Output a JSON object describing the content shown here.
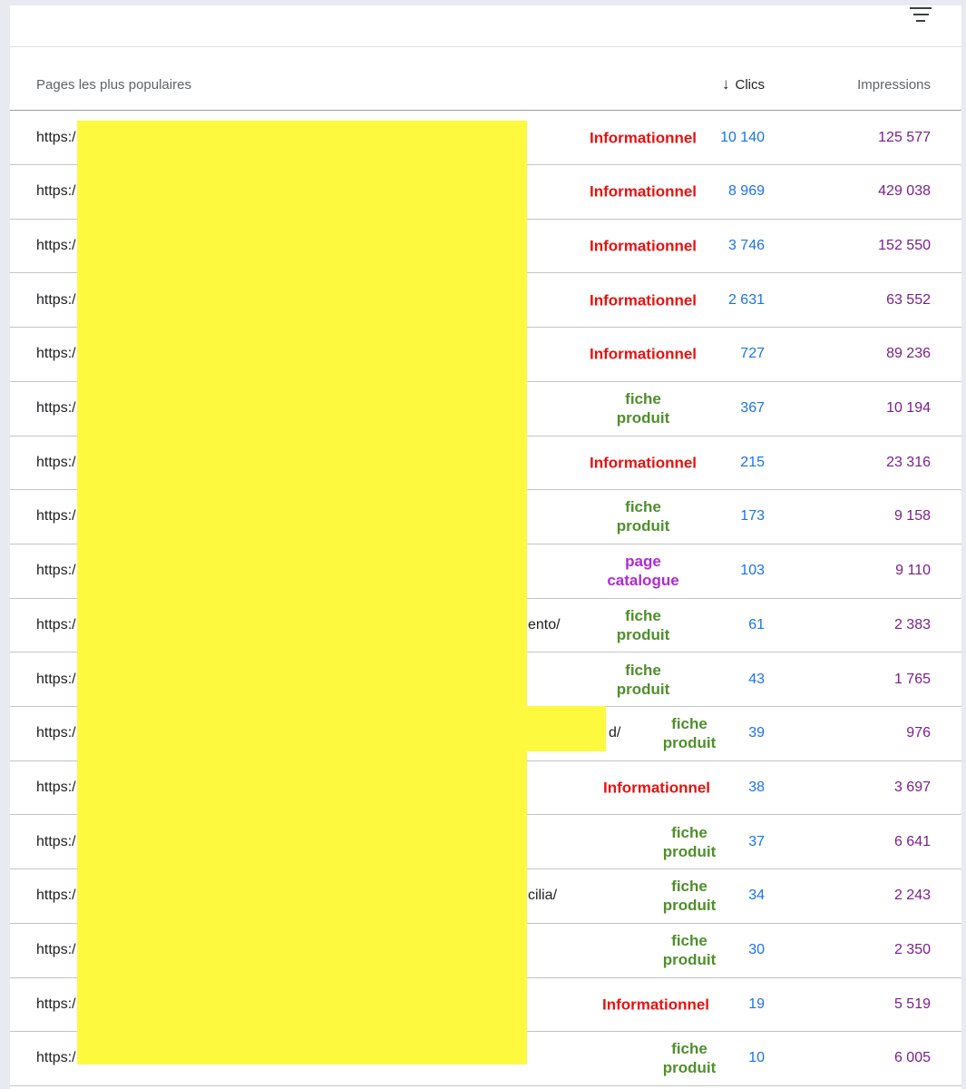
{
  "header": {
    "pages_label": "Pages les plus populaires",
    "clics_label": "Clics",
    "impressions_label": "Impressions",
    "sort_arrow": "↓"
  },
  "icons": {
    "filter": "filter-icon",
    "sort": "arrow-down-icon"
  },
  "colors": {
    "informationnel": "#e8110f",
    "fiche_produit": "#4f8f2b",
    "page_catalogue": "#b02ad6",
    "clics": "#1a73e8",
    "impressions": "#7a1f8c",
    "redaction": "#fdf93e"
  },
  "rows": [
    {
      "url": "https:/",
      "suffix": "",
      "category": "Informationnel",
      "clics": "10 140",
      "impressions": "125 577"
    },
    {
      "url": "https:/",
      "suffix": "",
      "category": "Informationnel",
      "clics": "8 969",
      "impressions": "429 038"
    },
    {
      "url": "https:/",
      "suffix": "",
      "category": "Informationnel",
      "clics": "3 746",
      "impressions": "152 550"
    },
    {
      "url": "https:/",
      "suffix": "",
      "category": "Informationnel",
      "clics": "2 631",
      "impressions": "63 552"
    },
    {
      "url": "https:/",
      "suffix": "",
      "category": "Informationnel",
      "clics": "727",
      "impressions": "89 236"
    },
    {
      "url": "https:/",
      "suffix": "",
      "category": "fiche produit",
      "clics": "367",
      "impressions": "10 194"
    },
    {
      "url": "https:/",
      "suffix": "",
      "category": "Informationnel",
      "clics": "215",
      "impressions": "23 316"
    },
    {
      "url": "https:/",
      "suffix": "",
      "category": "fiche produit",
      "clics": "173",
      "impressions": "9 158"
    },
    {
      "url": "https:/",
      "suffix": "",
      "category": "page catalogue",
      "clics": "103",
      "impressions": "9 110"
    },
    {
      "url": "https:/",
      "suffix": "ento/",
      "category": "fiche produit",
      "clics": "61",
      "impressions": "2 383"
    },
    {
      "url": "https:/",
      "suffix": "",
      "category": "fiche produit",
      "clics": "43",
      "impressions": "1 765"
    },
    {
      "url": "https:/",
      "suffix": "d/",
      "category": "fiche produit",
      "clics": "39",
      "impressions": "976"
    },
    {
      "url": "https:/",
      "suffix": "",
      "category": "Informationnel",
      "clics": "38",
      "impressions": "3 697"
    },
    {
      "url": "https:/",
      "suffix": "",
      "category": "fiche produit",
      "clics": "37",
      "impressions": "6 641"
    },
    {
      "url": "https:/",
      "suffix": "cilia/",
      "category": "fiche produit",
      "clics": "34",
      "impressions": "2 243"
    },
    {
      "url": "https:/",
      "suffix": "",
      "category": "fiche produit",
      "clics": "30",
      "impressions": "2 350"
    },
    {
      "url": "https:/",
      "suffix": "",
      "category": "Informationnel",
      "clics": "19",
      "impressions": "5 519"
    },
    {
      "url": "https:/",
      "suffix": "",
      "category": "fiche produit",
      "clics": "10",
      "impressions": "6 005"
    }
  ]
}
